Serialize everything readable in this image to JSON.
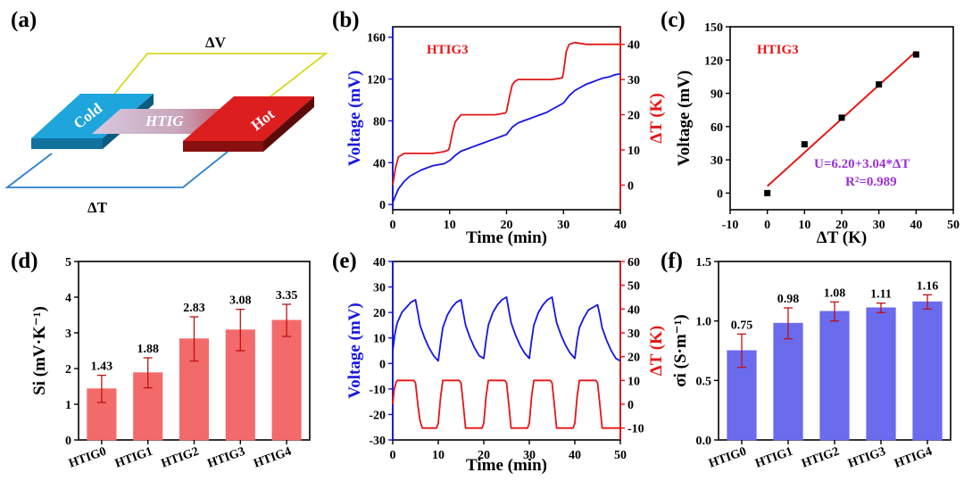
{
  "panel_labels": [
    "(a)",
    "(b)",
    "(c)",
    "(d)",
    "(e)",
    "(f)"
  ],
  "colors": {
    "blue": "#1515e6",
    "red": "#e61515",
    "purple": "#9b30d8",
    "bar_red": "#f36a6a",
    "bar_blue": "#6b6bee",
    "cold": "#1ea6dc",
    "hot": "#dc1e1e",
    "frame_yellow": "#d8d820",
    "frame_blue": "#2a7fcf"
  },
  "schematic": {
    "cold_label": "Cold",
    "hot_label": "Hot",
    "material_label": "HTIG",
    "dv_label": "ΔV",
    "dt_label": "ΔT"
  },
  "chart_data": [
    {
      "panel": "(b)",
      "type": "line",
      "annotation": "HTIG3",
      "xlabel": "Time (min)",
      "ylabel": "Voltage (mV)",
      "y2label": "ΔT (K)",
      "xlim": [
        0,
        40
      ],
      "ylim": [
        -5,
        170
      ],
      "y2lim": [
        -7,
        45
      ],
      "xticks": [
        "0",
        "10",
        "20",
        "30",
        "40"
      ],
      "yticks": [
        "0",
        "40",
        "80",
        "120",
        "160"
      ],
      "y2ticks": [
        "0",
        "10",
        "20",
        "30",
        "40"
      ],
      "series": [
        {
          "axis": "left",
          "color": "#1515e6",
          "x": [
            0,
            1,
            2,
            3,
            4,
            5,
            6,
            7,
            8,
            9,
            10,
            11,
            12,
            13,
            14,
            15,
            16,
            17,
            18,
            19,
            20,
            21,
            22,
            23,
            24,
            25,
            26,
            27,
            28,
            29,
            30,
            31,
            32,
            33,
            34,
            35,
            36,
            37,
            38,
            39,
            40
          ],
          "y": [
            2,
            15,
            22,
            27,
            30,
            33,
            35,
            37,
            38,
            39,
            42,
            47,
            51,
            53,
            55,
            57,
            59,
            61,
            63,
            65,
            67,
            74,
            78,
            80,
            82,
            84,
            86,
            88,
            91,
            94,
            97,
            104,
            109,
            112,
            115,
            117,
            119,
            121,
            122,
            124,
            125
          ]
        },
        {
          "axis": "right",
          "color": "#e61515",
          "x": [
            0,
            0.5,
            1,
            2,
            3,
            5,
            7,
            9,
            9.8,
            10,
            10.5,
            11,
            11.5,
            12,
            14,
            16,
            18,
            19.8,
            20,
            20.5,
            21,
            21.5,
            22,
            24,
            26,
            28,
            29.8,
            30,
            30.5,
            31,
            32,
            34,
            36,
            38,
            40
          ],
          "y": [
            0,
            5,
            8,
            9,
            9,
            9,
            9,
            9.5,
            10,
            11,
            15,
            18,
            19,
            20,
            20,
            20,
            20,
            20.5,
            21,
            25,
            28.5,
            29.5,
            30,
            30,
            30,
            30,
            30.5,
            32,
            38,
            40,
            40.5,
            40,
            40,
            40,
            40
          ]
        }
      ]
    },
    {
      "panel": "(c)",
      "type": "scatter",
      "annotation": "HTIG3",
      "fit_equation": "U=6.20+3.04*ΔT",
      "r_squared": "R²=0.989",
      "xlabel": "ΔT (K)",
      "ylabel": "Voltage (mV)",
      "xlim": [
        -10,
        50
      ],
      "ylim": [
        -15,
        150
      ],
      "xticks": [
        "-10",
        "0",
        "10",
        "20",
        "30",
        "40",
        "50"
      ],
      "yticks": [
        "0",
        "30",
        "60",
        "90",
        "120",
        "150"
      ],
      "points": {
        "x": [
          0,
          10,
          20,
          30,
          40
        ],
        "y": [
          0,
          44,
          68,
          98,
          125
        ]
      },
      "fit": {
        "intercept": 6.2,
        "slope": 3.04
      }
    },
    {
      "panel": "(d)",
      "type": "bar",
      "categories": [
        "HTIG0",
        "HTIG1",
        "HTIG2",
        "HTIG3",
        "HTIG4"
      ],
      "values": [
        1.43,
        1.88,
        2.83,
        3.08,
        3.35
      ],
      "value_labels": [
        "1.43",
        "1.88",
        "2.83",
        "3.08",
        "3.35"
      ],
      "errors": [
        0.38,
        0.42,
        0.62,
        0.58,
        0.45
      ],
      "ylabel": "Si (mV·K⁻¹)",
      "ylim": [
        0,
        5
      ],
      "yticks": [
        "0",
        "1",
        "2",
        "3",
        "4",
        "5"
      ]
    },
    {
      "panel": "(e)",
      "type": "line",
      "xlabel": "Time (min)",
      "ylabel": "Voltage (mV)",
      "y2label": "ΔT (K)",
      "xlim": [
        0,
        50
      ],
      "ylim": [
        -30,
        40
      ],
      "y2lim": [
        -15,
        60
      ],
      "xticks": [
        "0",
        "10",
        "20",
        "30",
        "40",
        "50"
      ],
      "yticks": [
        "-30",
        "-20",
        "-10",
        "0",
        "10",
        "20",
        "30",
        "40"
      ],
      "y2ticks": [
        "-10",
        "0",
        "10",
        "20",
        "30",
        "40",
        "50",
        "60"
      ],
      "series": [
        {
          "axis": "left",
          "color": "#1515e6",
          "x": [
            0,
            0.5,
            1,
            2,
            3,
            4,
            5,
            5.5,
            6,
            7,
            8,
            9,
            10,
            10.5,
            11,
            12,
            13,
            14,
            15,
            15.5,
            16,
            17,
            18,
            19,
            20,
            20.5,
            21,
            22,
            23,
            24,
            25,
            25.5,
            26,
            27,
            28,
            29,
            30,
            30.5,
            31,
            32,
            33,
            34,
            35,
            35.5,
            36,
            37,
            38,
            39,
            40,
            40.5,
            41,
            42,
            43,
            44,
            45,
            45.5,
            46,
            47,
            48,
            49,
            50
          ],
          "y": [
            5,
            12,
            16,
            20,
            22,
            24,
            25,
            20,
            15,
            10,
            6,
            3,
            1,
            8,
            14,
            19,
            22,
            24,
            25,
            20,
            15,
            10,
            6,
            3,
            2,
            9,
            15,
            20,
            23,
            25,
            26,
            21,
            16,
            11,
            7,
            4,
            2,
            9,
            15,
            20,
            23,
            25,
            26,
            21,
            16,
            11,
            7,
            4,
            2,
            9,
            14,
            18,
            21,
            22,
            23,
            19,
            14,
            9,
            5,
            2,
            1
          ]
        },
        {
          "axis": "right",
          "color": "#e61515",
          "x": [
            0,
            0.3,
            0.7,
            1,
            4.6,
            5,
            5.5,
            6,
            6.5,
            9.6,
            10,
            10.5,
            11,
            14.6,
            15,
            15.5,
            16,
            19.6,
            20,
            20.5,
            21,
            24.6,
            25,
            25.5,
            26,
            29.6,
            30,
            30.5,
            31,
            34.6,
            35,
            35.5,
            36,
            39.6,
            40,
            40.5,
            41,
            44.6,
            45,
            45.5,
            46,
            50
          ],
          "y": [
            0,
            6,
            9,
            10,
            10,
            9,
            0,
            -7,
            -10,
            -10,
            -8,
            3,
            10,
            10,
            9,
            0,
            -10,
            -10,
            -8,
            3,
            10,
            10,
            9,
            0,
            -10,
            -10,
            -8,
            3,
            10,
            10,
            9,
            0,
            -10,
            -10,
            -8,
            3,
            10,
            10,
            9,
            0,
            -10,
            -10
          ]
        }
      ]
    },
    {
      "panel": "(f)",
      "type": "bar",
      "categories": [
        "HTIG0",
        "HTIG1",
        "HTIG2",
        "HTIG3",
        "HTIG4"
      ],
      "values": [
        0.75,
        0.98,
        1.08,
        1.11,
        1.16
      ],
      "value_labels": [
        "0.75",
        "0.98",
        "1.08",
        "1.11",
        "1.16"
      ],
      "errors": [
        0.14,
        0.13,
        0.08,
        0.04,
        0.06
      ],
      "ylabel": "σi (S·m⁻¹)",
      "ylim": [
        0,
        1.5
      ],
      "yticks": [
        "0.0",
        "0.5",
        "1.0",
        "1.5"
      ]
    }
  ]
}
